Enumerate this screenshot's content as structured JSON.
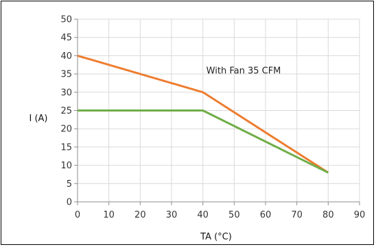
{
  "chart_data": {
    "type": "line",
    "xlabel": "TA (°C)",
    "ylabel": "I (A)",
    "xlim": [
      0,
      90
    ],
    "ylim": [
      0,
      50
    ],
    "x_ticks": [
      0,
      10,
      20,
      30,
      40,
      50,
      60,
      70,
      80,
      90
    ],
    "y_ticks": [
      0,
      5,
      10,
      15,
      20,
      25,
      30,
      35,
      40,
      45,
      50
    ],
    "grid": true,
    "legend": "none",
    "series": [
      {
        "x": [
          0,
          40,
          80
        ],
        "y": [
          40,
          30,
          8
        ],
        "color": "#ED7D31"
      },
      {
        "x": [
          0,
          40,
          80
        ],
        "y": [
          25,
          25,
          8
        ],
        "color": "#70AD47"
      }
    ],
    "annotations": [
      {
        "text": "With Fan 35 CFM",
        "x": 53,
        "y": 36
      }
    ]
  }
}
